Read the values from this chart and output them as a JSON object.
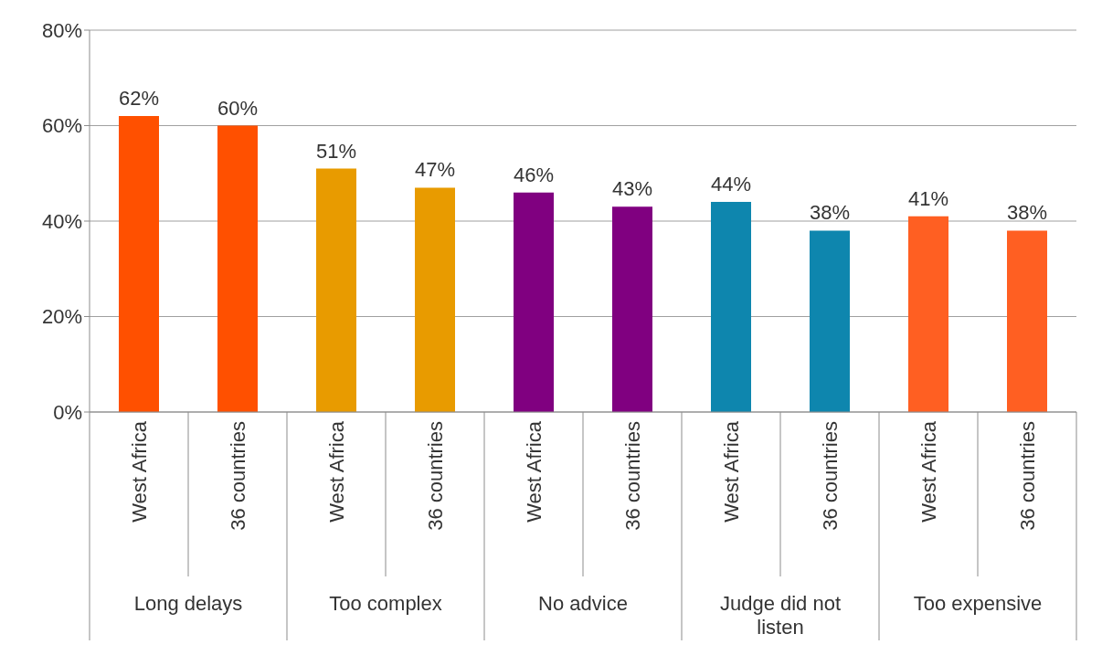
{
  "chart_data": {
    "type": "bar",
    "categories": [
      "West Africa",
      "36 countries",
      "West Africa",
      "36 countries",
      "West Africa",
      "36 countries",
      "West Africa",
      "36 countries",
      "West Africa",
      "36 countries"
    ],
    "values": [
      62,
      60,
      51,
      47,
      46,
      43,
      44,
      38,
      41,
      38
    ],
    "colors": [
      "#ff5000",
      "#ff5000",
      "#e89b00",
      "#e89b00",
      "#800080",
      "#800080",
      "#0e86ae",
      "#0e86ae",
      "#ff5f22",
      "#ff5f22"
    ],
    "value_labels": [
      "62%",
      "60%",
      "51%",
      "47%",
      "46%",
      "43%",
      "44%",
      "38%",
      "41%",
      "38%"
    ],
    "annotations": [
      "Long delays",
      "Too complex",
      "No advice",
      "Judge did not listen",
      "Too expensive"
    ],
    "ylim": [
      0,
      80
    ],
    "yticks": [
      {
        "value": 0,
        "label": "0%"
      },
      {
        "value": 20,
        "label": "20%"
      },
      {
        "value": 40,
        "label": "40%"
      },
      {
        "value": 60,
        "label": "60%"
      },
      {
        "value": 80,
        "label": "80%"
      }
    ],
    "grid": "y"
  }
}
